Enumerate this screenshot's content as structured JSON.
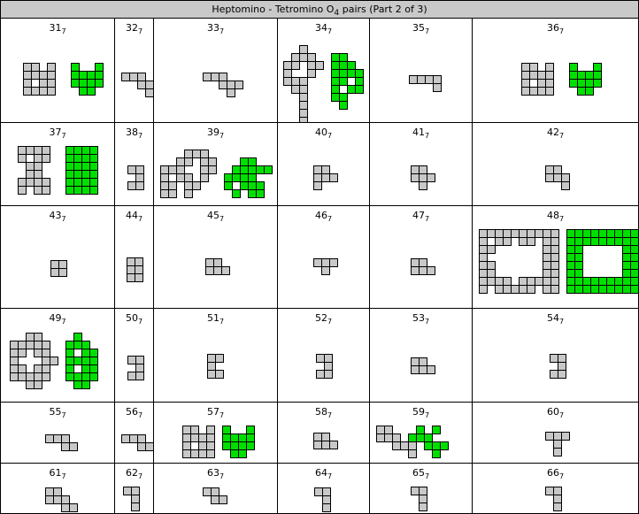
{
  "title": {
    "text": "Heptomino - Tetromino O",
    "sub": "4",
    "suffix": " pairs (Part 2 of 3)"
  },
  "colors": {
    "poly": "#c8c8c8",
    "tile": "#00e000",
    "stroke": "#000000",
    "header_bg": "#c9c9c9"
  },
  "cells": [
    {
      "num": "31",
      "sub": "7"
    },
    {
      "num": "32",
      "sub": "7"
    },
    {
      "num": "33",
      "sub": "7"
    },
    {
      "num": "34",
      "sub": "7"
    },
    {
      "num": "35",
      "sub": "7"
    },
    {
      "num": "36",
      "sub": "7"
    },
    {
      "num": "37",
      "sub": "7"
    },
    {
      "num": "38",
      "sub": "7"
    },
    {
      "num": "39",
      "sub": "7"
    },
    {
      "num": "40",
      "sub": "7"
    },
    {
      "num": "41",
      "sub": "7"
    },
    {
      "num": "42",
      "sub": "7"
    },
    {
      "num": "43",
      "sub": "7"
    },
    {
      "num": "44",
      "sub": "7"
    },
    {
      "num": "45",
      "sub": "7"
    },
    {
      "num": "46",
      "sub": "7"
    },
    {
      "num": "47",
      "sub": "7"
    },
    {
      "num": "48",
      "sub": "7"
    },
    {
      "num": "49",
      "sub": "7"
    },
    {
      "num": "50",
      "sub": "7"
    },
    {
      "num": "51",
      "sub": "7"
    },
    {
      "num": "52",
      "sub": "7"
    },
    {
      "num": "53",
      "sub": "7"
    },
    {
      "num": "54",
      "sub": "7"
    },
    {
      "num": "55",
      "sub": "7"
    },
    {
      "num": "56",
      "sub": "7"
    },
    {
      "num": "57",
      "sub": "7"
    },
    {
      "num": "58",
      "sub": "7"
    },
    {
      "num": "59",
      "sub": "7"
    },
    {
      "num": "60",
      "sub": "7"
    },
    {
      "num": "61",
      "sub": "7"
    },
    {
      "num": "62",
      "sub": "7"
    },
    {
      "num": "63",
      "sub": "7"
    },
    {
      "num": "64",
      "sub": "7"
    },
    {
      "num": "65",
      "sub": "7"
    },
    {
      "num": "66",
      "sub": "7"
    }
  ]
}
